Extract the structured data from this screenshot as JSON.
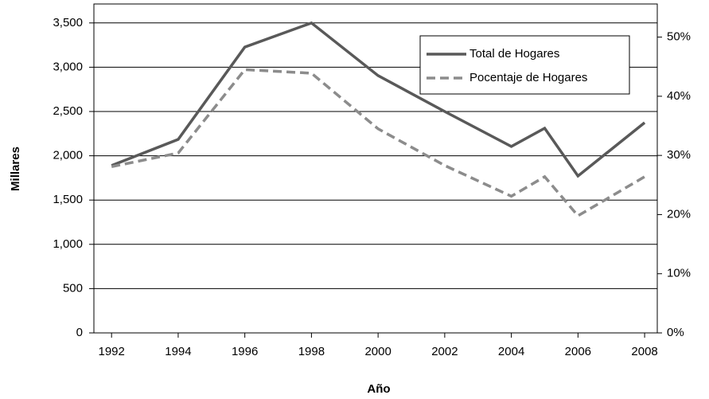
{
  "chart_data": {
    "type": "line",
    "x_label": "Año",
    "y_label": "Millares",
    "x": [
      1992,
      1994,
      1996,
      1998,
      2000,
      2002,
      2004,
      2005,
      2006,
      2008
    ],
    "series": [
      {
        "name": "Total de Hogares",
        "color": "#595959",
        "dash": false,
        "values": [
          1890,
          2185,
          3228,
          3500,
          2905,
          2500,
          2105,
          2311,
          1772,
          2374
        ]
      },
      {
        "name": "Pocentaje de Hogares",
        "color": "#8c8c8c",
        "dash": true,
        "axis": "y2",
        "values": [
          28.1,
          30.4,
          44.5,
          43.9,
          34.5,
          28.3,
          23.1,
          26.4,
          19.8,
          26.4
        ]
      }
    ],
    "xlim": [
      1991.47,
      2008.38
    ],
    "xticks": [
      1992,
      1994,
      1996,
      1998,
      2000,
      2002,
      2004,
      2006,
      2008
    ],
    "ylim": [
      0,
      3714
    ],
    "yticks": [
      0,
      500,
      {
        "value": 1000,
        "label": "1,000"
      },
      {
        "value": 1500,
        "label": "1,500"
      },
      {
        "value": 2000,
        "label": "2,000"
      },
      {
        "value": 2500,
        "label": "2,500"
      },
      {
        "value": 3000,
        "label": "3,000"
      },
      {
        "value": 3500,
        "label": "3,500"
      }
    ],
    "y2lim": [
      0,
      55.6
    ],
    "y2ticks": [
      {
        "value": 0,
        "label": "0%"
      },
      {
        "value": 10,
        "label": "10%"
      },
      {
        "value": 20,
        "label": "20%"
      },
      {
        "value": 30,
        "label": "30%"
      },
      {
        "value": 40,
        "label": "40%"
      },
      {
        "value": 50,
        "label": "50%"
      }
    ],
    "grid": true,
    "legend": "upper right"
  }
}
